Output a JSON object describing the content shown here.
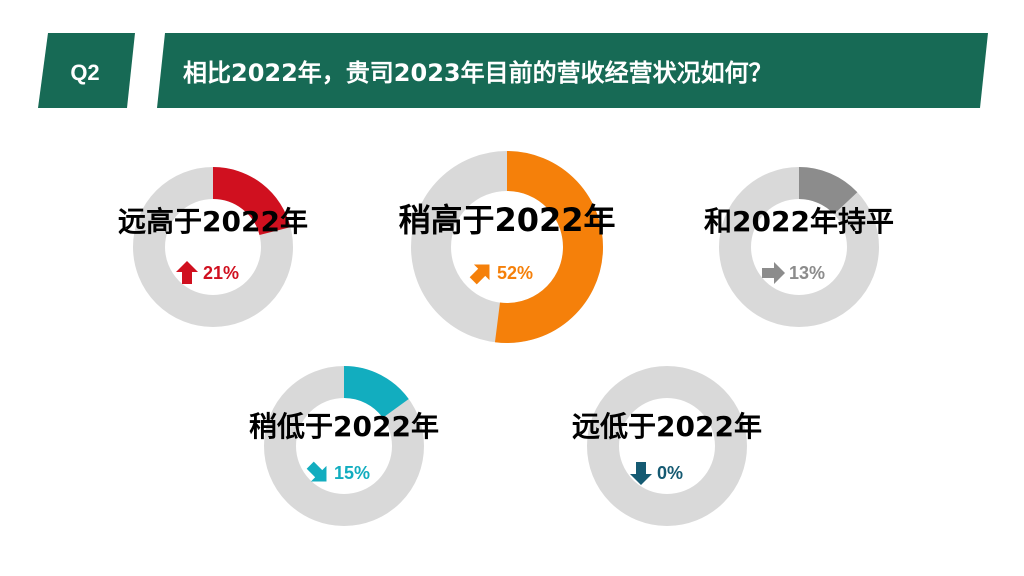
{
  "header": {
    "tag": "Q2",
    "question": "相比2022年，贵司2023年目前的营收经营状况如何？"
  },
  "colors": {
    "header_green": "#176a55",
    "ring_gray": "#d9d9d9"
  },
  "chart_data": {
    "type": "pie",
    "title": "",
    "categories": [
      "远高于2022年",
      "稍高于2022年",
      "和2022年持平",
      "稍低于2022年",
      "远低于2022年"
    ],
    "values": [
      21,
      52,
      13,
      15,
      0
    ],
    "unit": "%",
    "value_labels": [
      "21%",
      "52%",
      "13%",
      "15%",
      "0%"
    ],
    "series_colors": [
      "#d0101f",
      "#f5800a",
      "#8c8c8c",
      "#12adbf",
      "#155a72"
    ],
    "arrow_directions": [
      "up",
      "up-right",
      "right",
      "down-right",
      "down"
    ]
  }
}
